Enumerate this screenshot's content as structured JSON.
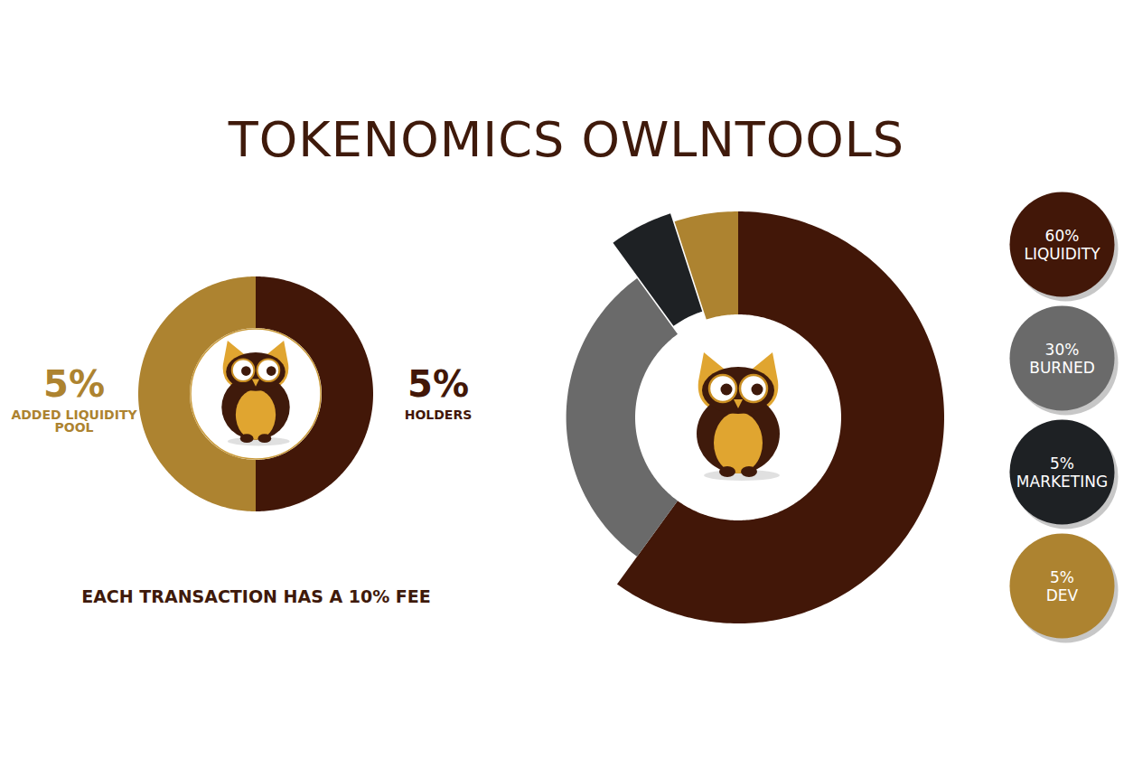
{
  "title": "TOKENOMICS OWLNTOOLS",
  "chart_data": [
    {
      "type": "donut",
      "categories": [
        "HOLDERS",
        "ADDED LIQUIDITY POOL"
      ],
      "values": [
        5,
        5
      ],
      "value_labels": [
        "5%",
        "5%"
      ],
      "colors": [
        "#421708",
        "#ad8330"
      ],
      "data_labels": true,
      "caption": "EACH TRANSACTION HAS A 10% FEE"
    },
    {
      "type": "donut",
      "categories": [
        "LIQUIDITY",
        "BURNED",
        "MARKETING",
        "DEV"
      ],
      "values": [
        60,
        30,
        5,
        5
      ],
      "value_labels": [
        "60%",
        "30%",
        "5%",
        "5%"
      ],
      "colors": [
        "#421708",
        "#6a6a6a",
        "#1e2124",
        "#ad8330"
      ],
      "legend": "right"
    }
  ]
}
